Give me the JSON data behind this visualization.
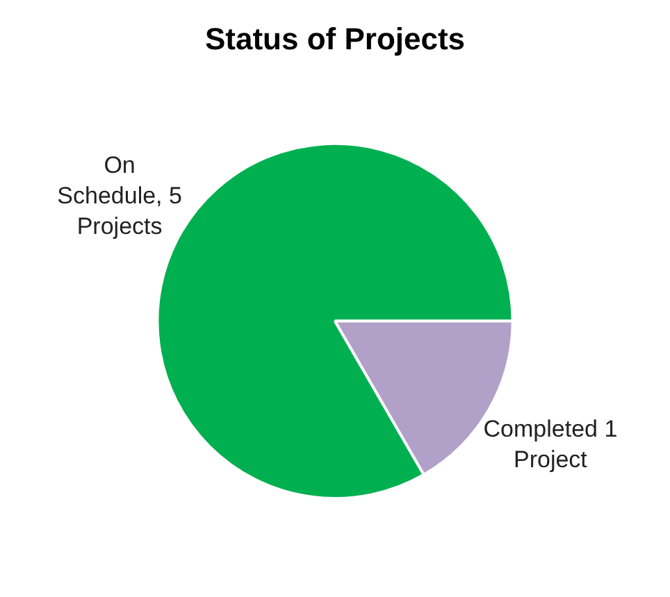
{
  "chart_data": {
    "type": "pie",
    "title": "Status of Projects",
    "categories": [
      null,
      null
    ],
    "values": [
      5,
      1
    ],
    "colors": [
      "#00b050",
      "#b1a0c7"
    ],
    "value_labels": [
      "On Schedule, 5 Projects",
      "Completed 1 Project"
    ]
  }
}
